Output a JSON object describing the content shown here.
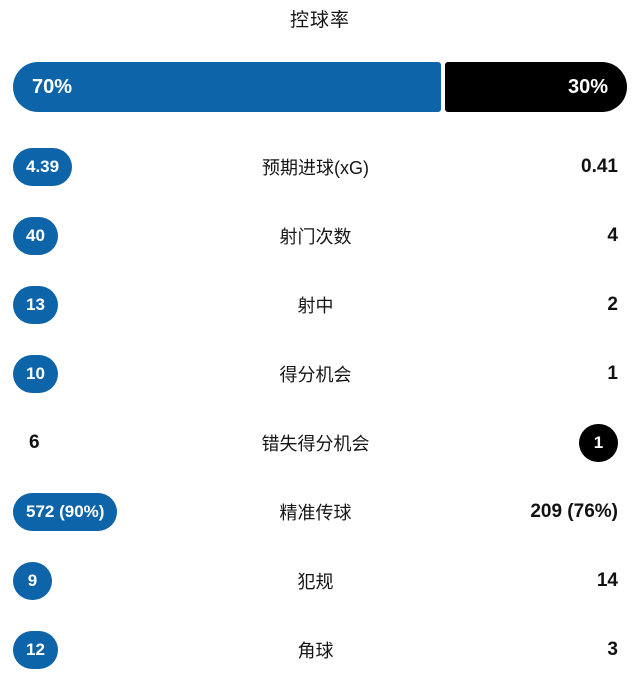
{
  "header": {
    "title": "控球率"
  },
  "colors": {
    "home": "#0e64a8",
    "away": "#000000",
    "text": "#161616",
    "background": "#ffffff"
  },
  "possession_bar": {
    "home_percent": 70,
    "away_percent": 30,
    "home_text": "70%",
    "away_text": "30%"
  },
  "stats": [
    {
      "label": "预期进球(xG)",
      "home": "4.39",
      "away": "0.41",
      "home_highlight": true,
      "away_highlight": false
    },
    {
      "label": "射门次数",
      "home": "40",
      "away": "4",
      "home_highlight": true,
      "away_highlight": false
    },
    {
      "label": "射中",
      "home": "13",
      "away": "2",
      "home_highlight": true,
      "away_highlight": false
    },
    {
      "label": "得分机会",
      "home": "10",
      "away": "1",
      "home_highlight": true,
      "away_highlight": false
    },
    {
      "label": "错失得分机会",
      "home": "6",
      "away": "1",
      "home_highlight": false,
      "away_highlight": true
    },
    {
      "label": "精准传球",
      "home": "572 (90%)",
      "away": "209 (76%)",
      "home_highlight": true,
      "away_highlight": false
    },
    {
      "label": "犯规",
      "home": "9",
      "away": "14",
      "home_highlight": true,
      "away_highlight": false
    },
    {
      "label": "角球",
      "home": "12",
      "away": "3",
      "home_highlight": true,
      "away_highlight": false
    }
  ]
}
